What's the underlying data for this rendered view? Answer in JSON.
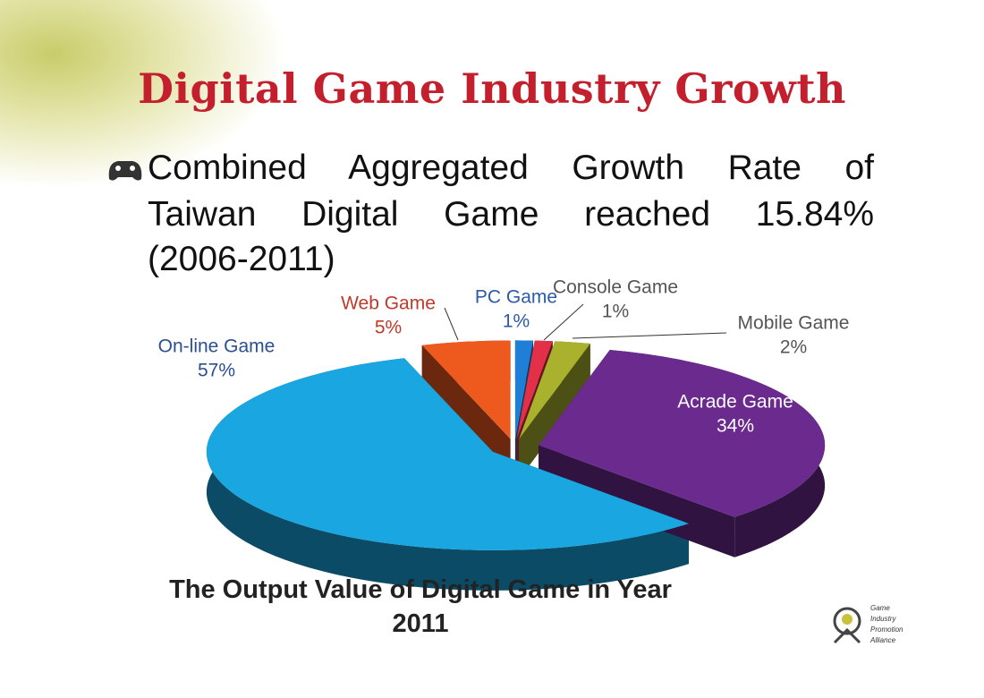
{
  "slide_title": "Digital Game Industry  Growth",
  "bullet_lines": [
    "Combined Aggregated Growth Rate of",
    "Taiwan Digital Game reached 15.84%",
    "(2006-2011)"
  ],
  "chart_data": {
    "type": "pie",
    "title": "The Output Value of Digital Game in Year 2011",
    "categories": [
      "On-line Game",
      "Web Game",
      "PC Game",
      "Console Game",
      "Mobile Game",
      "Acrade Game"
    ],
    "values": [
      57,
      5,
      1,
      1,
      2,
      34
    ],
    "value_labels": [
      "57%",
      "5%",
      "1%",
      "1%",
      "2%",
      "34%"
    ],
    "colors": [
      "#1aa6e0",
      "#ee5a1e",
      "#1f7fd6",
      "#e23048",
      "#aab12c",
      "#6b2a8e"
    ]
  },
  "logo": [
    "Game",
    "Industry",
    "Promotion",
    "Alliance"
  ]
}
